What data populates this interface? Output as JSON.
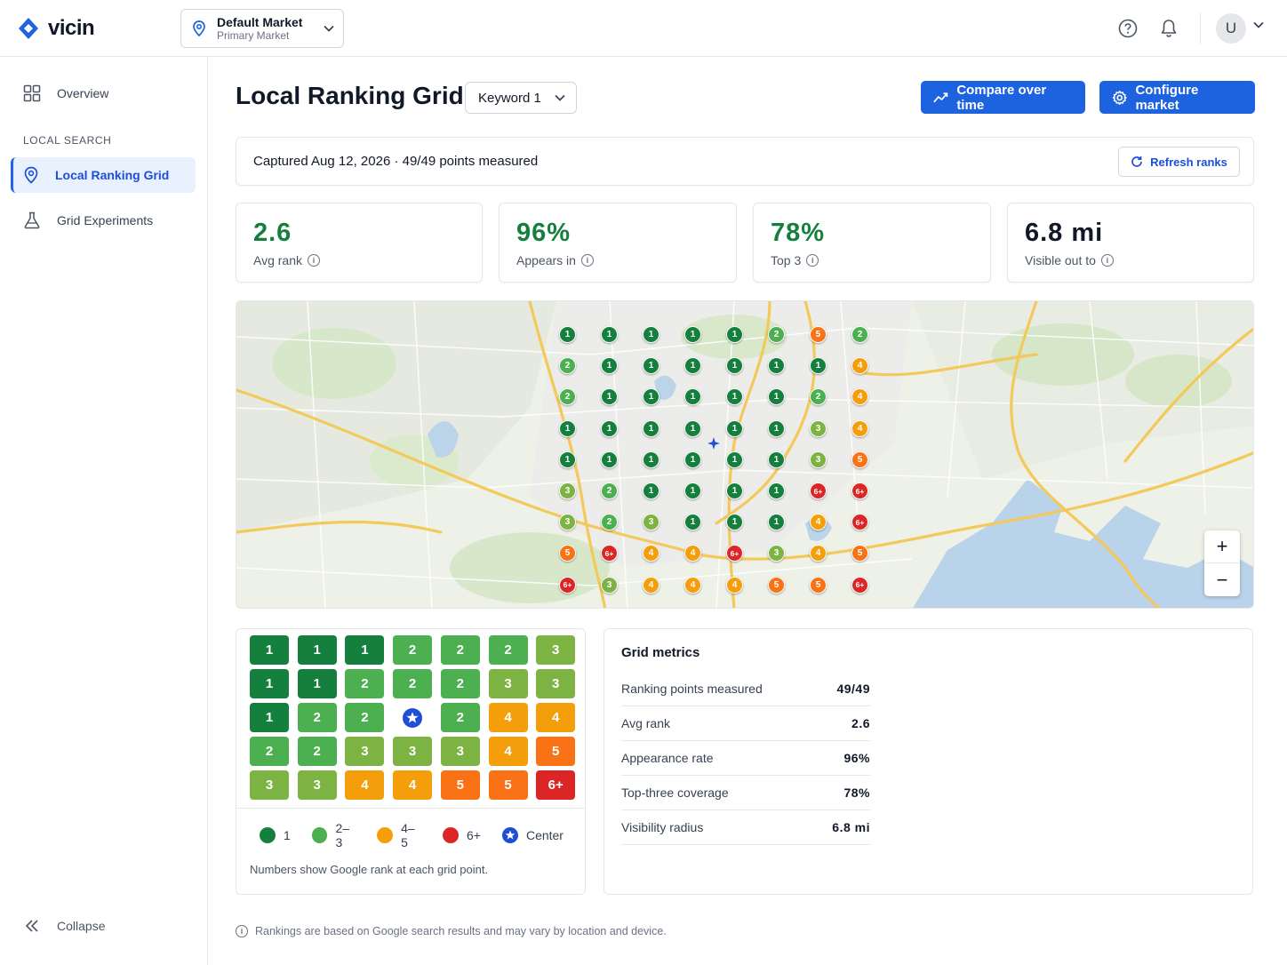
{
  "app": {
    "name": "vicin"
  },
  "market": {
    "name": "Default Market",
    "sub": "Primary Market"
  },
  "user": {
    "initial": "U"
  },
  "sidebar": {
    "overview": "Overview",
    "section": "LOCAL SEARCH",
    "items": [
      {
        "label": "Local Ranking Grid",
        "icon": "map-pin-icon",
        "active": true
      },
      {
        "label": "Grid Experiments",
        "icon": "flask-icon",
        "active": false
      }
    ],
    "collapse": "Collapse"
  },
  "header": {
    "title": "Local Ranking Grid",
    "keyword": "Keyword 1",
    "compare_label": "Compare over time",
    "configure_label": "Configure market"
  },
  "capture": {
    "text": "Captured Aug 12, 2026 · 49/49 points measured",
    "refresh_label": "Refresh ranks"
  },
  "stats": [
    {
      "value": "2.6",
      "label": "Avg rank"
    },
    {
      "value": "96%",
      "label": "Appears in"
    },
    {
      "value": "78%",
      "label": "Top 3"
    },
    {
      "value": "6.8 mi",
      "label": "Visible out to"
    }
  ],
  "colors": {
    "rank1": "#15803d",
    "rank23": "#4caf50",
    "rank3": "#7cb342",
    "rank45": "#f59e0b",
    "rank5": "#f97316",
    "rank6": "#dc2626",
    "center": "#1d4ed8",
    "primary": "#1d63e0",
    "stat_green": "#15803d"
  },
  "map": {
    "zoom_in": "+",
    "zoom_out": "−",
    "pins": [
      [
        "1",
        "1",
        "1",
        "1",
        "1",
        "2",
        "5",
        "2"
      ],
      [
        "2",
        "1",
        "1",
        "1",
        "1",
        "1",
        "1",
        "4"
      ],
      [
        "2",
        "1",
        "1",
        "1",
        "1",
        "1",
        "2",
        "4"
      ],
      [
        "1",
        "1",
        "1",
        "1",
        "1",
        "1",
        "3",
        "4"
      ],
      [
        "1",
        "1",
        "1",
        "1",
        "1",
        "1",
        "3",
        "5"
      ],
      [
        "3",
        "2",
        "1",
        "1",
        "1",
        "1",
        "6+",
        "6+"
      ],
      [
        "3",
        "2",
        "3",
        "1",
        "1",
        "1",
        "4",
        "6+"
      ],
      [
        "5",
        "6+",
        "4",
        "4",
        "6+",
        "3",
        "4",
        "5"
      ],
      [
        "6+",
        "3",
        "4",
        "4",
        "4",
        "5",
        "5",
        "6+"
      ]
    ]
  },
  "heat_grid": {
    "rows": [
      [
        "1",
        "1",
        "1",
        "2",
        "2",
        "2",
        "3"
      ],
      [
        "1",
        "1",
        "2",
        "2",
        "2",
        "3",
        "3"
      ],
      [
        "1",
        "2",
        "2",
        "center",
        "2",
        "4",
        "4"
      ],
      [
        "2",
        "2",
        "3",
        "3",
        "3",
        "4",
        "5"
      ],
      [
        "3",
        "3",
        "4",
        "4",
        "5",
        "5",
        "6+"
      ]
    ],
    "legend": [
      {
        "label": "1",
        "color": "#15803d"
      },
      {
        "label": "2–3",
        "color": "#4caf50"
      },
      {
        "label": "4–5",
        "color": "#f59e0b"
      },
      {
        "label": "6+",
        "color": "#dc2626"
      },
      {
        "label": "Center",
        "color": "#1d4ed8"
      }
    ],
    "note": "Numbers show Google rank at each grid point."
  },
  "metrics": {
    "title": "Grid metrics",
    "rows": [
      {
        "label": "Ranking points measured",
        "value": "49/49"
      },
      {
        "label": "Avg rank",
        "value": "2.6"
      },
      {
        "label": "Appearance rate",
        "value": "96%"
      },
      {
        "label": "Top-three coverage",
        "value": "78%"
      },
      {
        "label": "Visibility radius",
        "value": "6.8 mi"
      }
    ]
  },
  "footnote": "Rankings are based on Google search results and may vary by location and device."
}
